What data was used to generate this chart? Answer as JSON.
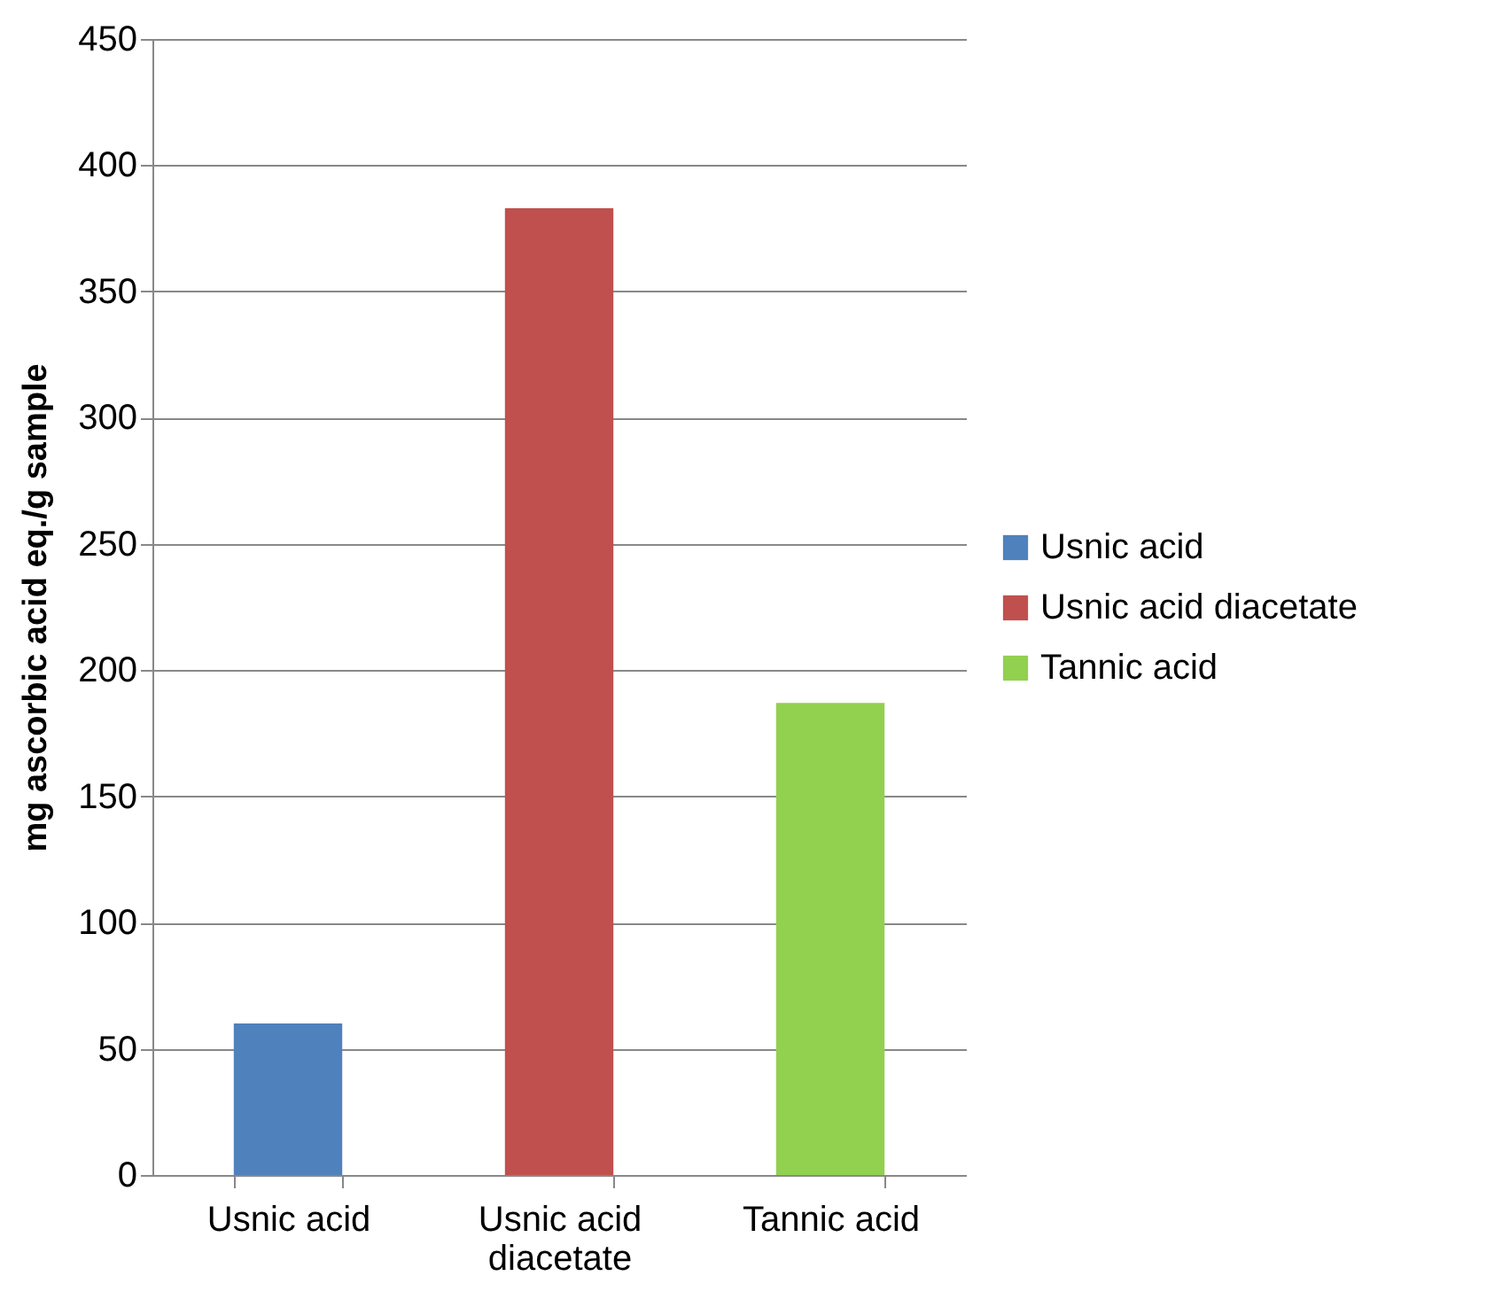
{
  "chart_data": {
    "type": "bar",
    "ylabel": "mg ascorbic acid eq./g sample",
    "categories": [
      "Usnic acid",
      "Usnic acid diacetate",
      "Tannic acid"
    ],
    "series": [
      {
        "name": "Usnic acid",
        "color": "#4f81bd",
        "values": [
          60,
          null,
          null
        ]
      },
      {
        "name": "Usnic acid diacetate",
        "color": "#c0504d",
        "values": [
          null,
          383,
          null
        ]
      },
      {
        "name": "Tannic acid",
        "color": "#92d050",
        "values": [
          null,
          null,
          187
        ]
      }
    ],
    "ylim": [
      0,
      450
    ],
    "yticks": [
      0,
      50,
      100,
      150,
      200,
      250,
      300,
      350,
      400,
      450
    ],
    "grid": "y",
    "legend": "right"
  }
}
